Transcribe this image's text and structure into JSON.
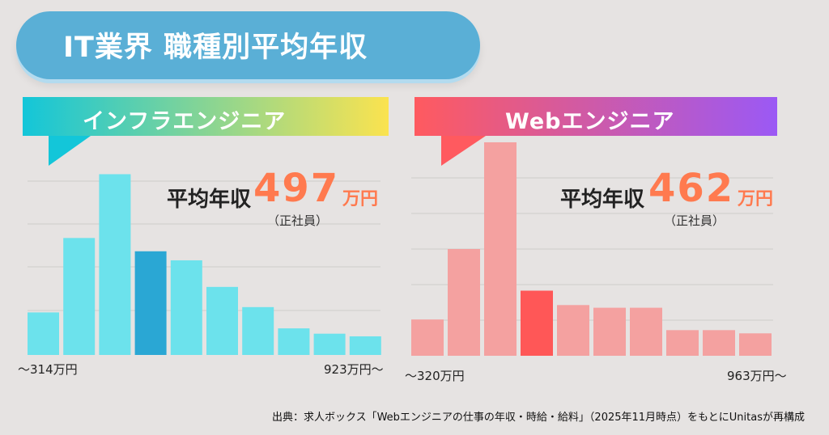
{
  "header": {
    "title": "IT業界 職種別平均年収"
  },
  "colors": {
    "title_bg": "#5aafd6",
    "infra_bar": "#6ce2ec",
    "infra_highlight": "#2aa7d4",
    "web_bar": "#f4a1a0",
    "web_highlight": "#ff5757",
    "accent_value": "#ff7a4f",
    "infra_banner_gradient": [
      "#13c6d9",
      "#fbe34f"
    ],
    "web_banner_gradient": [
      "#ff5a5f",
      "#9b59f5"
    ]
  },
  "chart_data": [
    {
      "type": "bar",
      "title": "インフラエンジニア",
      "values": [
        8,
        22,
        34,
        19.5,
        17.8,
        12.8,
        9,
        5,
        4,
        3.5
      ],
      "highlight_index": 3,
      "ylim": [
        0,
        40
      ],
      "x_start_label": "〜314万円",
      "x_end_label": "923万円〜",
      "average_label": "平均年収",
      "average_value": "497",
      "average_unit": "万円",
      "average_note": "（正社員）",
      "grid": true
    },
    {
      "type": "bar",
      "title": "Webエンジニア",
      "values": [
        6.8,
        20,
        40,
        12.2,
        9.5,
        9,
        9,
        4.8,
        4.8,
        4.2
      ],
      "highlight_index": 3,
      "ylim": [
        0,
        40
      ],
      "x_start_label": "〜320万円",
      "x_end_label": "963万円〜",
      "average_label": "平均年収",
      "average_value": "462",
      "average_unit": "万円",
      "average_note": "（正社員）",
      "grid": true
    }
  ],
  "footer": {
    "source": "出典：求人ボックス「Webエンジニアの仕事の年収・時給・給料」（2025年11月時点）をもとにUnitasが再構成"
  }
}
